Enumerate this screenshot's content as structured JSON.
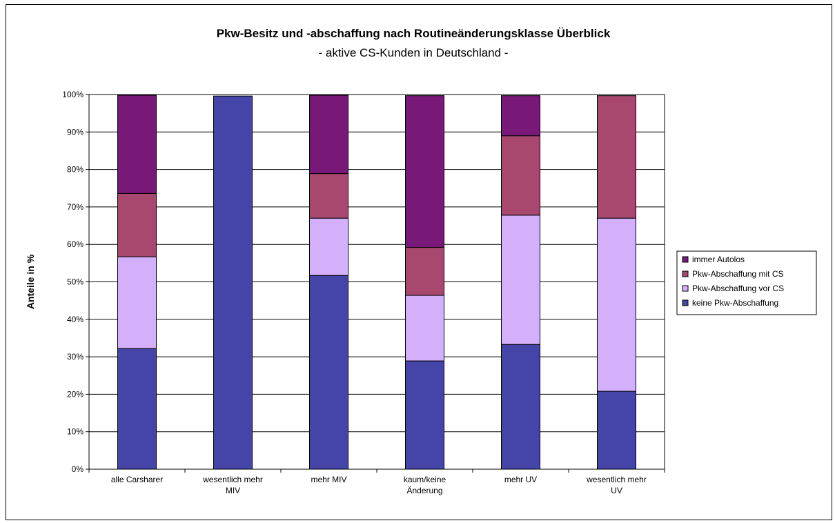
{
  "chart_data": {
    "type": "bar",
    "stacked": true,
    "title": "Pkw-Besitz und -abschaffung nach Routineänderungsklasse Überblick",
    "subtitle": "- aktive CS-Kunden in Deutschland -",
    "xlabel": "",
    "ylabel": "Anteile in %",
    "ylim": [
      0,
      100
    ],
    "y_ticks": [
      "0%",
      "10%",
      "20%",
      "30%",
      "40%",
      "50%",
      "60%",
      "70%",
      "80%",
      "90%",
      "100%"
    ],
    "grid": true,
    "legend_position": "right",
    "categories": [
      [
        "alle Carsharer"
      ],
      [
        "wesentlich mehr",
        "MIV"
      ],
      [
        "mehr MIV"
      ],
      [
        "kaum/keine",
        "Änderung"
      ],
      [
        "mehr UV"
      ],
      [
        "wesentlich mehr",
        "UV"
      ]
    ],
    "series": [
      {
        "name": "keine Pkw-Abschaffung",
        "color": "#4545a8",
        "values": [
          32.2,
          99.6,
          51.7,
          28.9,
          33.3,
          20.8
        ]
      },
      {
        "name": "Pkw-Abschaffung vor CS",
        "color": "#d4b0fc",
        "values": [
          24.5,
          0,
          15.3,
          17.5,
          34.5,
          46.2
        ]
      },
      {
        "name": "Pkw-Abschaffung mit CS",
        "color": "#a8486f",
        "values": [
          16.9,
          0,
          11.9,
          12.8,
          21.2,
          32.7
        ]
      },
      {
        "name": "immer Autolos",
        "color": "#781878",
        "values": [
          26.2,
          0,
          20.9,
          40.5,
          10.7,
          0
        ]
      }
    ]
  }
}
